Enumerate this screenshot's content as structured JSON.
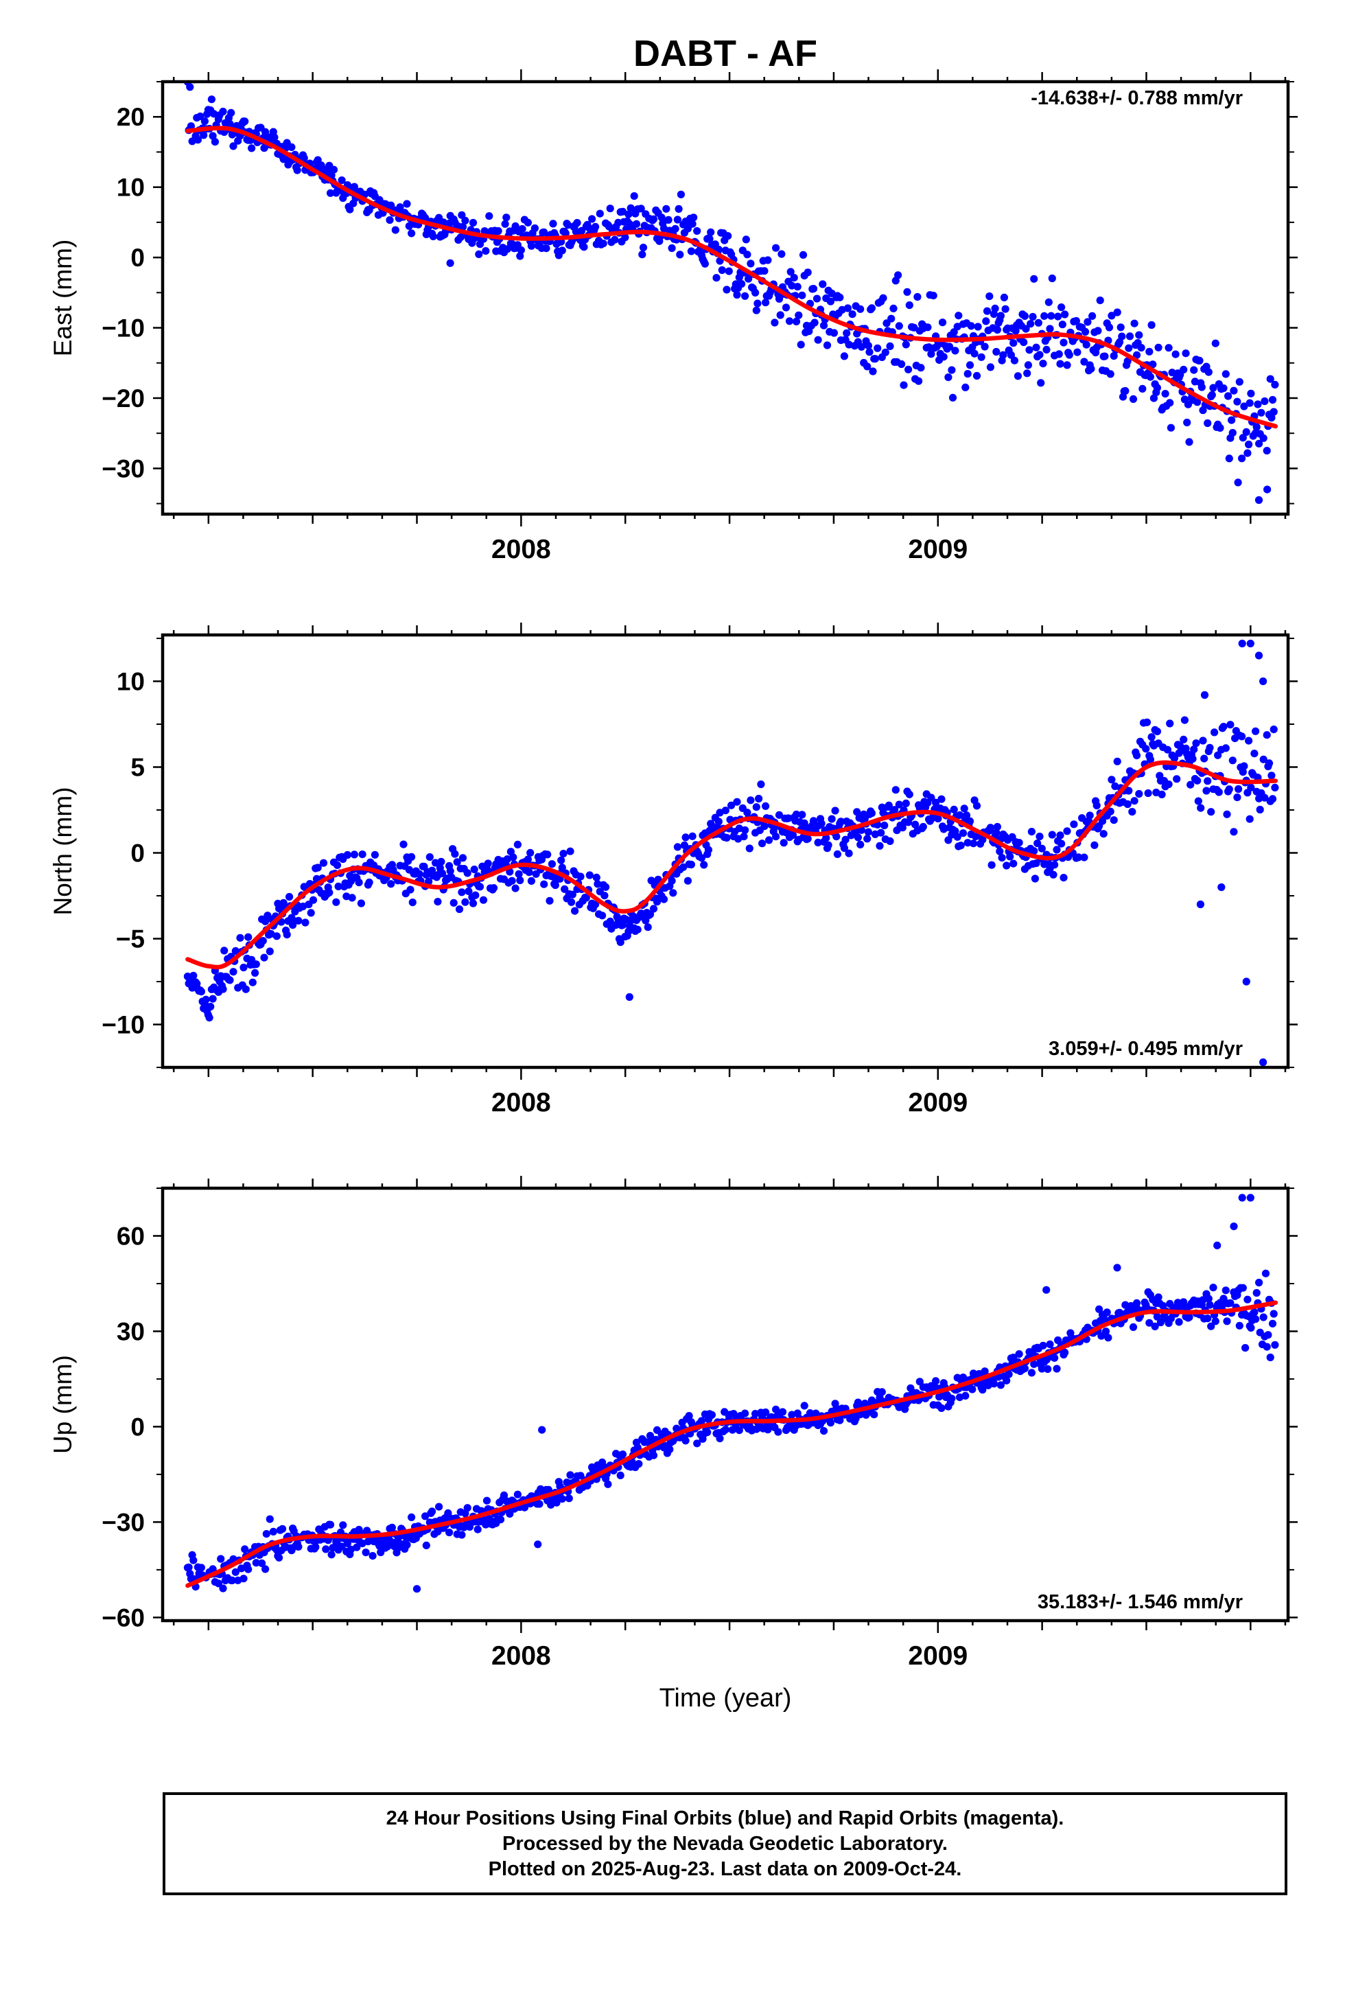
{
  "title": "DABT - AF",
  "xlabel": "Time (year)",
  "footer": {
    "lines": [
      "24 Hour Positions Using Final Orbits (blue) and Rapid Orbits (magenta).",
      "Processed by the Nevada Geodetic Laboratory.",
      "Plotted on 2025-Aug-23. Last data on 2009-Oct-24."
    ]
  },
  "colors": {
    "final_orbits": "#0000ff",
    "fit_curve": "#ff0000",
    "frame": "#000000"
  },
  "chart_data": [
    {
      "type": "scatter",
      "ylabel": "East (mm)",
      "rate_label": "-14.638+/- 0.788 mm/yr",
      "rate_position": "top-right",
      "xlim": [
        2007.14,
        2009.84
      ],
      "ylim": [
        -36.5,
        25
      ],
      "xticks": [
        2008,
        2009
      ],
      "yticks": [
        20,
        10,
        0,
        -10,
        -20,
        -30
      ],
      "grid": false,
      "trend_rate": -14.638,
      "fit_curve": {
        "x": [
          2007.2,
          2007.3,
          2007.4,
          2007.5,
          2007.6,
          2007.7,
          2007.8,
          2007.9,
          2008.0,
          2008.1,
          2008.2,
          2008.3,
          2008.4,
          2008.5,
          2008.6,
          2008.7,
          2008.8,
          2008.9,
          2009.0,
          2009.1,
          2009.2,
          2009.3,
          2009.4,
          2009.5,
          2009.6,
          2009.7,
          2009.81
        ],
        "y": [
          18,
          18.3,
          16,
          12.5,
          9,
          6.2,
          4.5,
          3.2,
          2.7,
          2.8,
          3.3,
          3.6,
          2.5,
          -0.5,
          -4,
          -7.5,
          -10,
          -11.2,
          -11.7,
          -11.6,
          -11.2,
          -11,
          -12.3,
          -15.5,
          -19,
          -22,
          -24
        ]
      },
      "anchors": {
        "x": [
          2007.2,
          2007.3,
          2007.4,
          2007.5,
          2007.6,
          2007.7,
          2007.8,
          2007.9,
          2008.0,
          2008.1,
          2008.2,
          2008.3,
          2008.4,
          2008.5,
          2008.6,
          2008.7,
          2008.8,
          2008.9,
          2009.0,
          2009.1,
          2009.2,
          2009.3,
          2009.4,
          2009.5,
          2009.6,
          2009.7,
          2009.81
        ],
        "y": [
          21,
          19,
          16,
          12.5,
          9,
          6.2,
          4.5,
          3.2,
          2.7,
          2.8,
          3.8,
          4.2,
          3.5,
          -0.5,
          -4,
          -7.5,
          -10,
          -11.2,
          -11.7,
          -11.6,
          -11.2,
          -11.3,
          -12.3,
          -15.5,
          -19,
          -22,
          -24
        ]
      },
      "scatter": [
        6.4,
        1.8,
        1.8,
        1.8,
        1.8,
        2.0,
        2.0,
        2.5,
        2.5,
        2.5,
        3.0,
        3.5,
        3.5,
        4.5,
        5.0,
        6.0,
        6.0,
        6.0,
        6.0,
        6.0,
        6.0,
        6.0,
        6.0,
        6.0,
        6.0,
        6.0,
        6.0
      ],
      "outliers": [
        [
          2009.77,
          -34.5
        ],
        [
          2009.79,
          -33
        ],
        [
          2009.72,
          -32
        ],
        [
          2007.83,
          -0.8
        ]
      ]
    },
    {
      "type": "scatter",
      "ylabel": "North (mm)",
      "rate_label": "3.059+/- 0.495 mm/yr",
      "rate_position": "bottom-right",
      "xlim": [
        2007.14,
        2009.84
      ],
      "ylim": [
        -12.5,
        12.7
      ],
      "xticks": [
        2008,
        2009
      ],
      "yticks": [
        10,
        5,
        0,
        -5,
        -10
      ],
      "grid": false,
      "trend_rate": 3.059,
      "fit_curve": {
        "x": [
          2007.2,
          2007.25,
          2007.3,
          2007.4,
          2007.5,
          2007.6,
          2007.7,
          2007.8,
          2007.9,
          2008.0,
          2008.1,
          2008.2,
          2008.25,
          2008.3,
          2008.4,
          2008.5,
          2008.55,
          2008.6,
          2008.7,
          2008.8,
          2008.9,
          2009.0,
          2009.1,
          2009.2,
          2009.3,
          2009.4,
          2009.5,
          2009.6,
          2009.7,
          2009.81
        ],
        "y": [
          -6.2,
          -6.6,
          -6.4,
          -4.2,
          -2,
          -0.9,
          -1.4,
          -2,
          -1.5,
          -0.7,
          -1.3,
          -3,
          -3.4,
          -2.8,
          0,
          1.6,
          2,
          1.8,
          1.1,
          1.5,
          2.2,
          2.3,
          1.2,
          0,
          -0.1,
          2.5,
          5,
          5.1,
          4.2,
          4.2
        ]
      },
      "anchors": {
        "x": [
          2007.2,
          2007.25,
          2007.3,
          2007.4,
          2007.5,
          2007.6,
          2007.7,
          2007.8,
          2007.9,
          2008.0,
          2008.1,
          2008.2,
          2008.25,
          2008.3,
          2008.4,
          2008.5,
          2008.55,
          2008.6,
          2008.7,
          2008.8,
          2008.9,
          2009.0,
          2009.1,
          2009.2,
          2009.3,
          2009.4,
          2009.5,
          2009.6,
          2009.7,
          2009.81
        ],
        "y": [
          -7.5,
          -8.5,
          -7,
          -4.2,
          -2,
          -0.9,
          -1.4,
          -1.5,
          -1.5,
          -0.7,
          -1.3,
          -3,
          -4.5,
          -3.5,
          0,
          1.6,
          2,
          1.8,
          1.1,
          1.5,
          2.2,
          2.3,
          1.2,
          0,
          -0.1,
          2.5,
          5.5,
          5.5,
          4.8,
          4.2
        ]
      },
      "scatter": [
        1.5,
        1.5,
        1.5,
        1.5,
        1.5,
        1.3,
        1.3,
        1.3,
        1.3,
        1.3,
        1.2,
        1.3,
        1.3,
        1.3,
        1.3,
        1.3,
        1.3,
        1.3,
        1.3,
        1.3,
        1.3,
        1.3,
        1.3,
        1.3,
        1.3,
        1.5,
        2.0,
        2.2,
        2.5,
        2.5
      ],
      "outliers": [
        [
          2009.73,
          12.2
        ],
        [
          2009.75,
          12.2
        ],
        [
          2009.77,
          11.5
        ],
        [
          2009.78,
          10
        ],
        [
          2009.74,
          -7.5
        ],
        [
          2009.78,
          -12.2
        ],
        [
          2009.63,
          -3
        ],
        [
          2009.68,
          -2
        ],
        [
          2008.26,
          -8.4
        ],
        [
          2009.64,
          9.2
        ]
      ]
    },
    {
      "type": "scatter",
      "ylabel": "Up (mm)",
      "rate_label": "35.183+/- 1.546 mm/yr",
      "rate_position": "bottom-right",
      "xlim": [
        2007.14,
        2009.84
      ],
      "ylim": [
        -61,
        75
      ],
      "xticks": [
        2008,
        2009
      ],
      "yticks": [
        60,
        30,
        0,
        -30,
        -60
      ],
      "grid": false,
      "trend_rate": 35.183,
      "fit_curve": {
        "x": [
          2007.2,
          2007.3,
          2007.4,
          2007.5,
          2007.6,
          2007.7,
          2007.8,
          2007.9,
          2008.0,
          2008.1,
          2008.2,
          2008.3,
          2008.4,
          2008.5,
          2008.6,
          2008.7,
          2008.8,
          2008.9,
          2009.0,
          2009.1,
          2009.2,
          2009.3,
          2009.4,
          2009.5,
          2009.6,
          2009.7,
          2009.81
        ],
        "y": [
          -50,
          -44,
          -37,
          -34.5,
          -34.5,
          -33.5,
          -31,
          -28,
          -24,
          -20,
          -14,
          -7,
          -1,
          1.5,
          1.8,
          2.5,
          5,
          8,
          11,
          15,
          20,
          25,
          32,
          36,
          36,
          36.5,
          39
        ]
      },
      "anchors": {
        "x": [
          2007.2,
          2007.3,
          2007.4,
          2007.5,
          2007.6,
          2007.7,
          2007.8,
          2007.9,
          2008.0,
          2008.1,
          2008.2,
          2008.3,
          2008.4,
          2008.5,
          2008.6,
          2008.7,
          2008.8,
          2008.9,
          2009.0,
          2009.1,
          2009.2,
          2009.3,
          2009.4,
          2009.5,
          2009.6,
          2009.7,
          2009.81
        ],
        "y": [
          -46,
          -47,
          -37,
          -34.5,
          -36,
          -35.5,
          -31,
          -28,
          -24,
          -20,
          -14,
          -7,
          -1,
          1.5,
          1.8,
          2.5,
          5,
          8,
          11,
          15,
          20,
          25,
          32,
          37,
          37,
          38,
          34
        ]
      },
      "scatter": [
        5,
        5,
        4.5,
        4,
        5,
        5,
        4.5,
        4,
        4,
        4,
        4,
        4,
        4,
        4,
        4,
        4,
        4,
        4,
        4,
        4,
        4,
        4,
        4,
        4,
        4,
        8,
        10
      ],
      "outliers": [
        [
          2009.73,
          72
        ],
        [
          2009.75,
          72
        ],
        [
          2009.71,
          63
        ],
        [
          2009.67,
          57
        ],
        [
          2008.04,
          -37
        ],
        [
          2008.05,
          -1
        ],
        [
          2007.75,
          -51
        ],
        [
          2009.26,
          43
        ],
        [
          2009.43,
          50
        ]
      ]
    }
  ]
}
